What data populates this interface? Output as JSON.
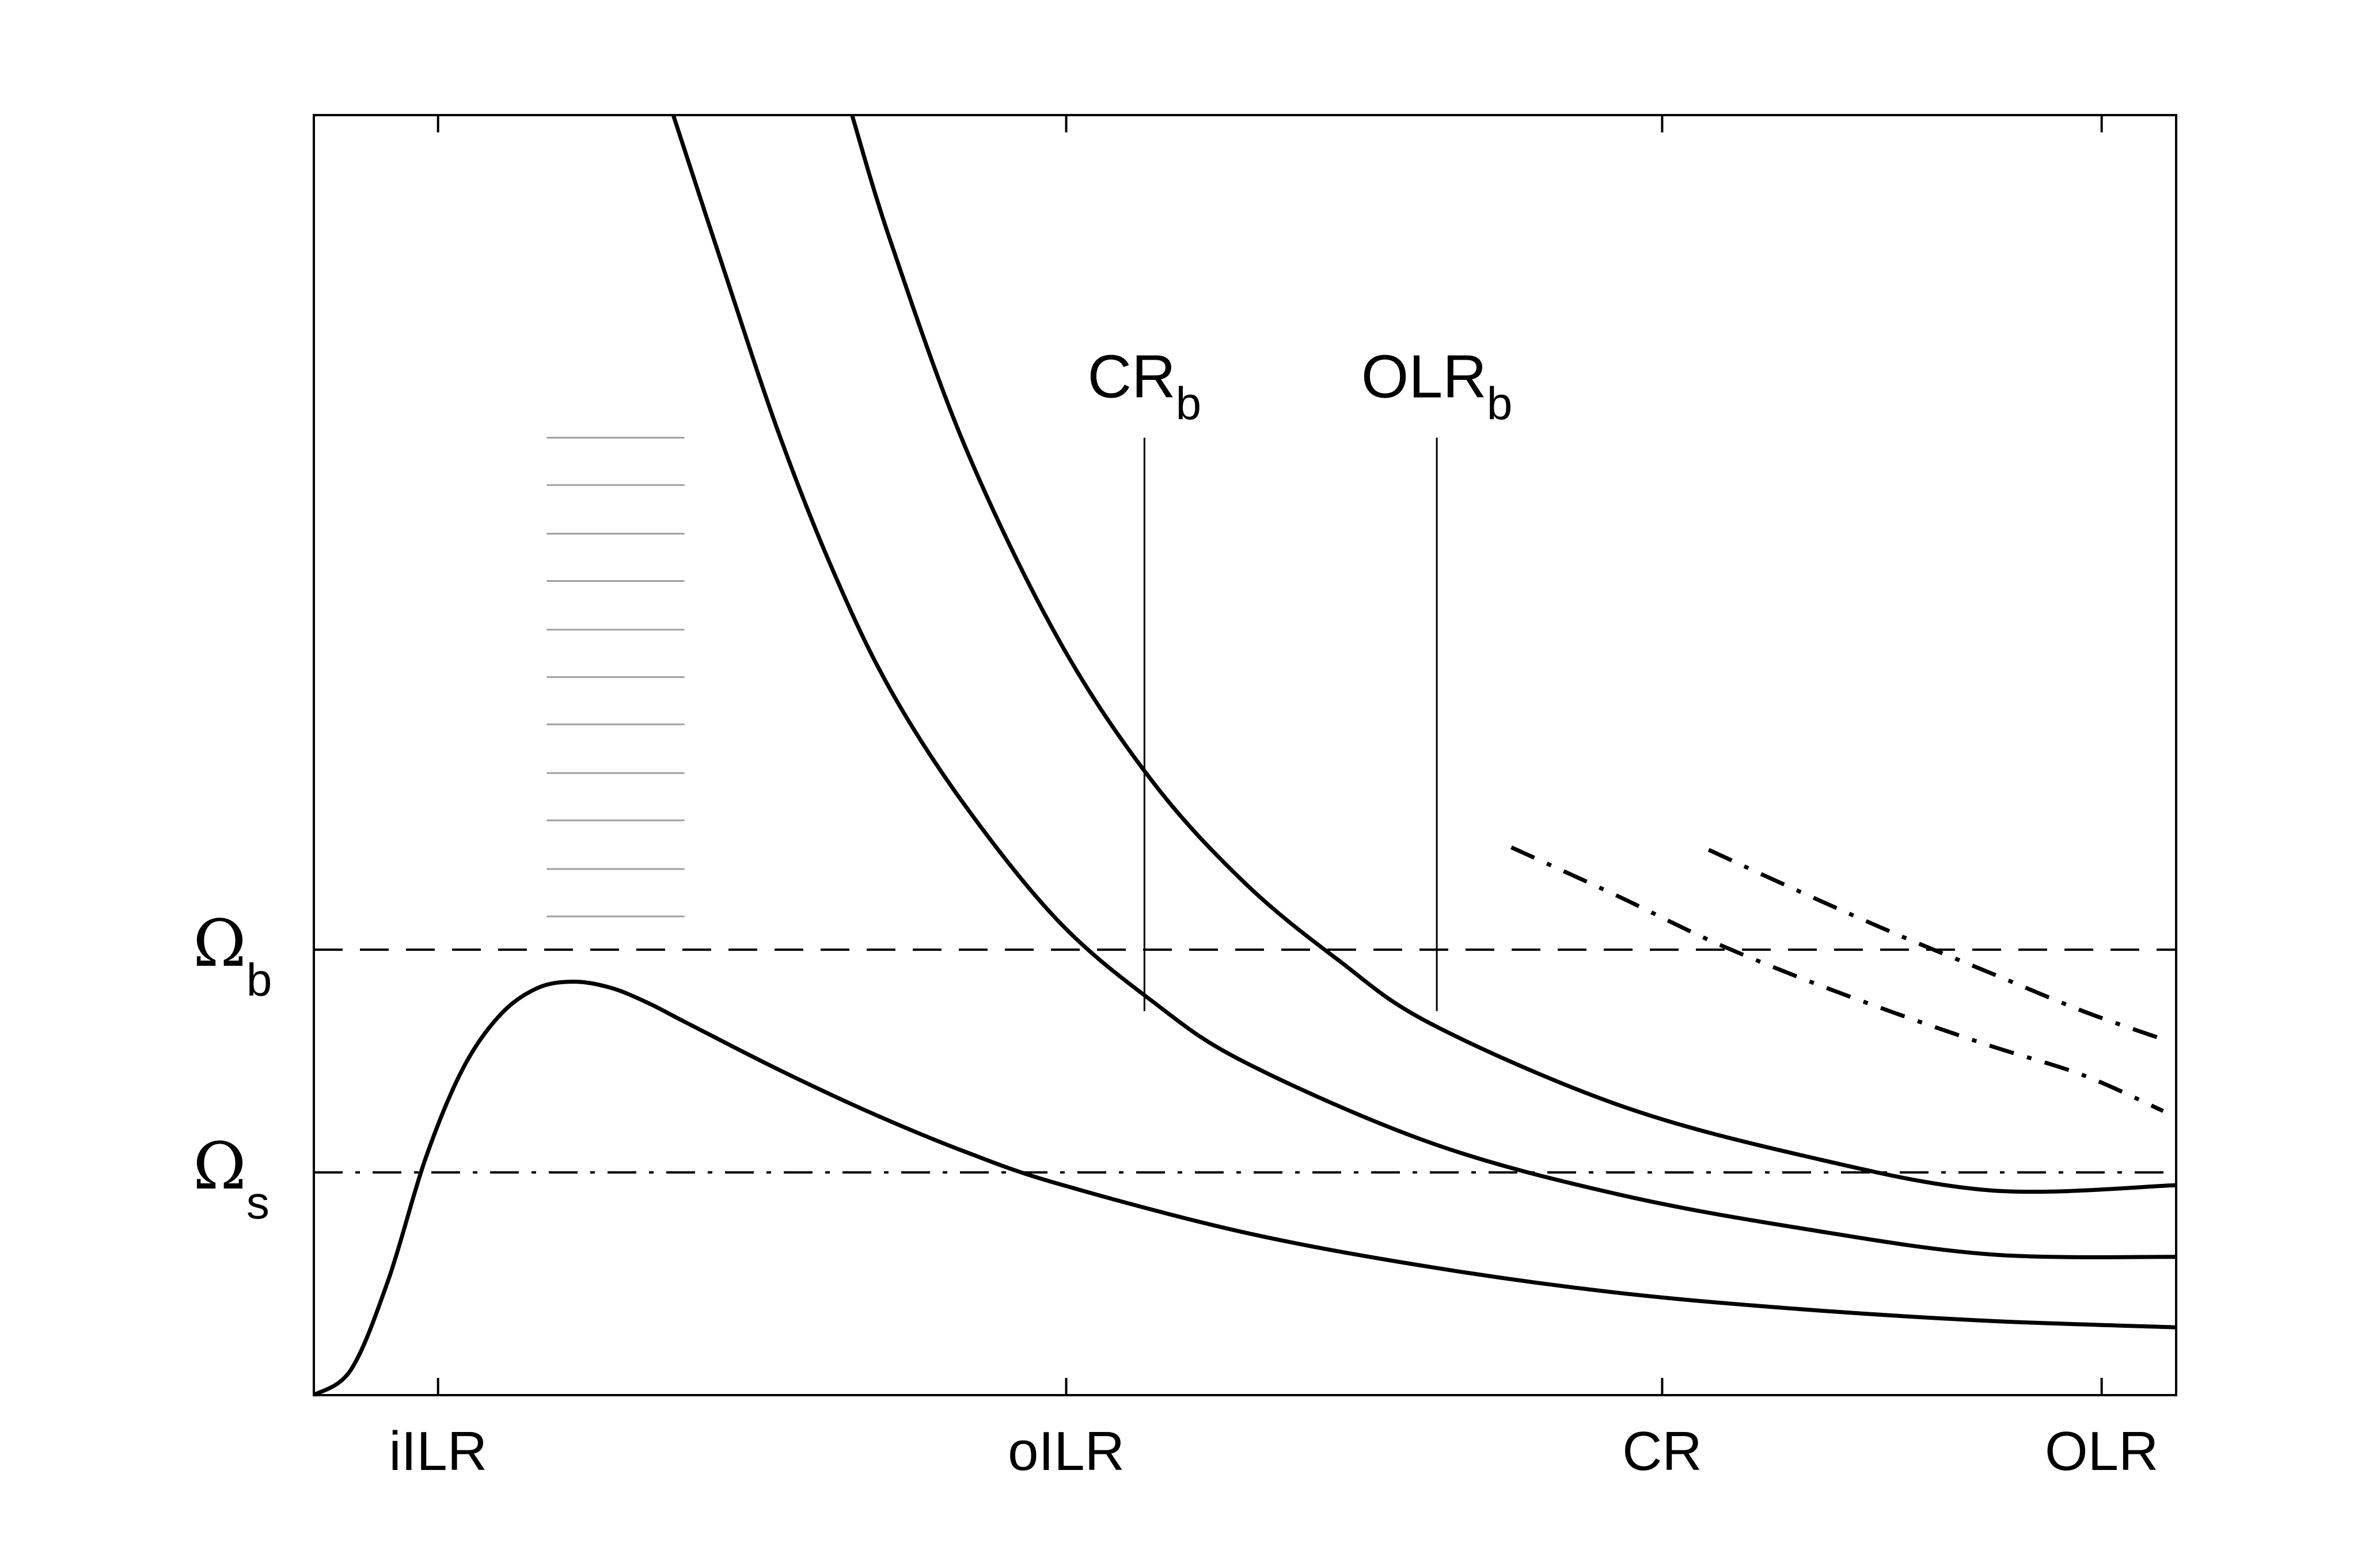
{
  "chart_data": {
    "type": "line",
    "title": "",
    "xlabel": "",
    "ylabel": "",
    "xlim": [
      0,
      1
    ],
    "ylim": [
      0,
      1
    ],
    "x_ticks": [
      {
        "value": 0.0667,
        "label": "iILR"
      },
      {
        "value": 0.404,
        "label": "oILR"
      },
      {
        "value": 0.724,
        "label": "CR"
      },
      {
        "value": 0.96,
        "label": "OLR"
      }
    ],
    "y_ticks": [
      {
        "value": 0.348,
        "symbol": "Ω",
        "sub": "b"
      },
      {
        "value": 0.174,
        "symbol": "Ω",
        "sub": "s"
      }
    ],
    "grid": false,
    "series": [
      {
        "style": "solid",
        "x": [
          0,
          0.02,
          0.04,
          0.06,
          0.08,
          0.1,
          0.12,
          0.14,
          0.16,
          0.18,
          0.2,
          0.25,
          0.3,
          0.35,
          0.4,
          0.5,
          0.6,
          0.7,
          0.8,
          0.9,
          1.0
        ],
        "y": [
          0,
          0.02,
          0.09,
          0.185,
          0.255,
          0.297,
          0.318,
          0.323,
          0.318,
          0.306,
          0.291,
          0.254,
          0.22,
          0.19,
          0.165,
          0.127,
          0.1,
          0.08,
          0.067,
          0.058,
          0.053
        ]
      },
      {
        "style": "solid",
        "x": [
          0.193,
          0.22,
          0.25,
          0.28,
          0.31,
          0.35,
          0.4,
          0.45,
          0.5,
          0.6,
          0.7,
          0.8,
          0.9,
          1.0
        ],
        "y": [
          1.0,
          0.88,
          0.75,
          0.64,
          0.55,
          0.46,
          0.37,
          0.308,
          0.26,
          0.197,
          0.157,
          0.13,
          0.11,
          0.108
        ]
      },
      {
        "style": "solid",
        "x": [
          0.289,
          0.31,
          0.35,
          0.4,
          0.45,
          0.5,
          0.55,
          0.6,
          0.7,
          0.8,
          0.9,
          1.0
        ],
        "y": [
          1.0,
          0.9,
          0.74,
          0.59,
          0.48,
          0.4,
          0.34,
          0.29,
          0.227,
          0.187,
          0.16,
          0.164
        ]
      },
      {
        "style": "dashdot",
        "x": [
          0.643,
          0.7,
          0.75,
          0.8,
          0.85,
          0.9,
          0.95,
          0.993
        ],
        "y": [
          0.428,
          0.39,
          0.355,
          0.325,
          0.298,
          0.273,
          0.25,
          0.222
        ]
      },
      {
        "style": "dashdot",
        "x": [
          0.749,
          0.8,
          0.85,
          0.9,
          0.95,
          0.993
        ],
        "y": [
          0.426,
          0.392,
          0.36,
          0.33,
          0.3,
          0.278
        ]
      }
    ],
    "reference_lines": [
      {
        "orientation": "horizontal",
        "value": 0.348,
        "style": "dashed"
      },
      {
        "orientation": "horizontal",
        "value": 0.174,
        "style": "dashdot"
      }
    ],
    "markers": [
      {
        "x": 0.446,
        "y_range": [
          0.3,
          0.748
        ],
        "label": "CR",
        "sub": "b"
      },
      {
        "x": 0.603,
        "y_range": [
          0.3,
          0.748
        ],
        "label": "OLR",
        "sub": "b"
      }
    ],
    "shaded_band": {
      "x_range": [
        0.125,
        0.199
      ],
      "y_values": [
        0.374,
        0.411,
        0.449,
        0.486,
        0.524,
        0.561,
        0.598,
        0.636,
        0.673,
        0.711,
        0.748
      ],
      "color": "#a0a0a0"
    }
  }
}
